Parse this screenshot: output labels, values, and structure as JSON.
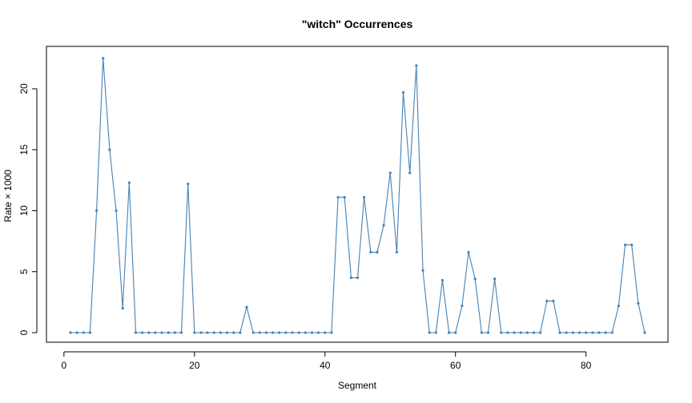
{
  "chart_data": {
    "type": "line",
    "title": "\"witch\" Occurrences",
    "xlabel": "Segment",
    "ylabel": "Rate × 1000",
    "xlim": [
      1,
      89
    ],
    "ylim": [
      0,
      22.5
    ],
    "x_ticks": [
      0,
      20,
      40,
      60,
      80
    ],
    "y_ticks": [
      0,
      5,
      10,
      15,
      20
    ],
    "grid": false,
    "legend": "none",
    "series": [
      {
        "color": "#4682b4",
        "x": [
          1,
          2,
          3,
          4,
          5,
          6,
          7,
          8,
          9,
          10,
          11,
          12,
          13,
          14,
          15,
          16,
          17,
          18,
          19,
          20,
          21,
          22,
          23,
          24,
          25,
          26,
          27,
          28,
          29,
          30,
          31,
          32,
          33,
          34,
          35,
          36,
          37,
          38,
          39,
          40,
          41,
          42,
          43,
          44,
          45,
          46,
          47,
          48,
          49,
          50,
          51,
          52,
          53,
          54,
          55,
          56,
          57,
          58,
          59,
          60,
          61,
          62,
          63,
          64,
          65,
          66,
          67,
          68,
          69,
          70,
          71,
          72,
          73,
          74,
          75,
          76,
          77,
          78,
          79,
          80,
          81,
          82,
          83,
          84,
          85,
          86,
          87,
          88,
          89
        ],
        "values": [
          0,
          0,
          0,
          0,
          10,
          22.5,
          15,
          10,
          2,
          12.3,
          0,
          0,
          0,
          0,
          0,
          0,
          0,
          0,
          12.2,
          0,
          0,
          0,
          0,
          0,
          0,
          0,
          0,
          2.1,
          0,
          0,
          0,
          0,
          0,
          0,
          0,
          0,
          0,
          0,
          0,
          0,
          0,
          11.1,
          11.1,
          4.5,
          4.5,
          11.1,
          6.6,
          6.6,
          8.8,
          13.1,
          6.6,
          19.7,
          13.1,
          21.9,
          5.1,
          0,
          0,
          4.3,
          0,
          0,
          2.2,
          6.6,
          4.4,
          0,
          0,
          4.4,
          0,
          0,
          0,
          0,
          0,
          0,
          0,
          2.6,
          2.6,
          0,
          0,
          0,
          0,
          0,
          0,
          0,
          0,
          0,
          2.2,
          7.2,
          7.2,
          2.4,
          0
        ]
      }
    ]
  }
}
